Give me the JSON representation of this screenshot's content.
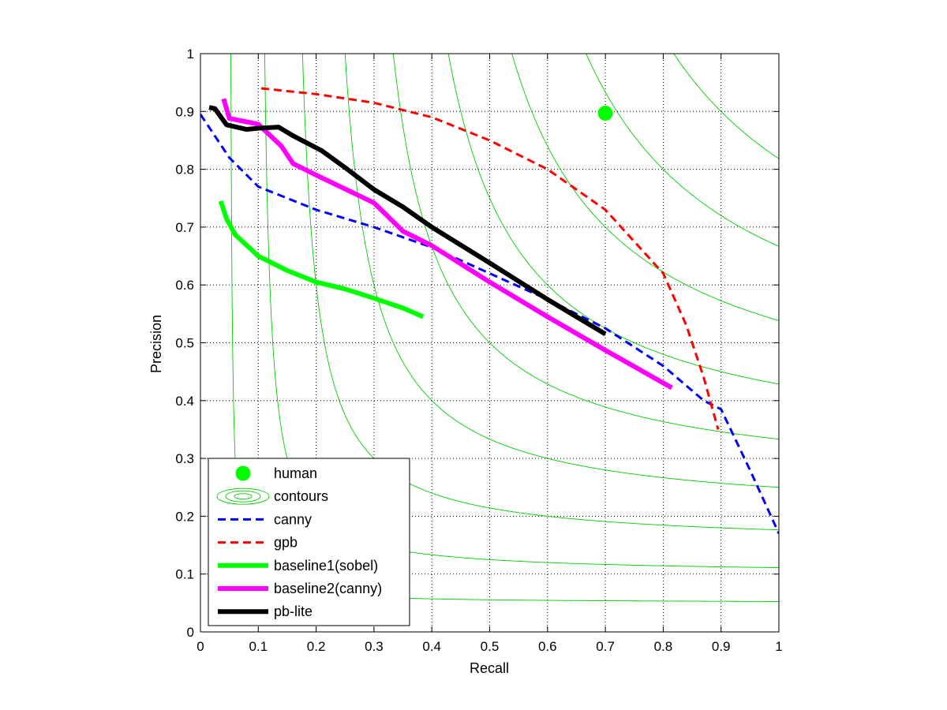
{
  "chart_data": {
    "type": "line",
    "title": "",
    "xlabel": "Recall",
    "ylabel": "Precision",
    "xlim": [
      0,
      1
    ],
    "ylim": [
      0,
      1
    ],
    "xticks": [
      "0",
      "0.1",
      "0.2",
      "0.3",
      "0.4",
      "0.5",
      "0.6",
      "0.7",
      "0.8",
      "0.9",
      "1"
    ],
    "yticks": [
      "0",
      "0.1",
      "0.2",
      "0.3",
      "0.4",
      "0.5",
      "0.6",
      "0.7",
      "0.8",
      "0.9",
      "1"
    ],
    "grid": true,
    "legend_position": "bottom-left",
    "contour_levels": [
      0.1,
      0.2,
      0.3,
      0.4,
      0.5,
      0.6,
      0.7,
      0.8,
      0.9
    ],
    "series": [
      {
        "name": "human",
        "kind": "point",
        "color": "#00ff00",
        "points": [
          [
            0.7,
            0.897
          ]
        ]
      },
      {
        "name": "contours",
        "kind": "contours",
        "color": "#00cc00"
      },
      {
        "name": "canny",
        "kind": "dashed",
        "color": "#0000ff",
        "points": [
          [
            0.0,
            0.895
          ],
          [
            0.05,
            0.82
          ],
          [
            0.1,
            0.77
          ],
          [
            0.2,
            0.73
          ],
          [
            0.3,
            0.7
          ],
          [
            0.4,
            0.665
          ],
          [
            0.5,
            0.62
          ],
          [
            0.6,
            0.575
          ],
          [
            0.7,
            0.525
          ],
          [
            0.8,
            0.46
          ],
          [
            0.87,
            0.4
          ],
          [
            0.9,
            0.385
          ],
          [
            0.95,
            0.28
          ],
          [
            1.0,
            0.17
          ]
        ]
      },
      {
        "name": "gpb",
        "kind": "dashed",
        "color": "#ff0000",
        "points": [
          [
            0.105,
            0.94
          ],
          [
            0.2,
            0.93
          ],
          [
            0.3,
            0.915
          ],
          [
            0.4,
            0.89
          ],
          [
            0.5,
            0.85
          ],
          [
            0.6,
            0.8
          ],
          [
            0.7,
            0.73
          ],
          [
            0.8,
            0.62
          ],
          [
            0.84,
            0.53
          ],
          [
            0.87,
            0.44
          ],
          [
            0.895,
            0.35
          ]
        ]
      },
      {
        "name": "baseline1(sobel)",
        "kind": "solid",
        "color": "#00ff00",
        "points": [
          [
            0.035,
            0.745
          ],
          [
            0.045,
            0.715
          ],
          [
            0.06,
            0.687
          ],
          [
            0.1,
            0.65
          ],
          [
            0.15,
            0.625
          ],
          [
            0.2,
            0.605
          ],
          [
            0.25,
            0.593
          ],
          [
            0.3,
            0.577
          ],
          [
            0.35,
            0.56
          ],
          [
            0.385,
            0.545
          ]
        ]
      },
      {
        "name": "baseline2(canny)",
        "kind": "solid",
        "color": "#ff00ff",
        "points": [
          [
            0.04,
            0.922
          ],
          [
            0.05,
            0.888
          ],
          [
            0.1,
            0.878
          ],
          [
            0.14,
            0.84
          ],
          [
            0.16,
            0.81
          ],
          [
            0.2,
            0.79
          ],
          [
            0.3,
            0.742
          ],
          [
            0.35,
            0.693
          ],
          [
            0.4,
            0.668
          ],
          [
            0.5,
            0.605
          ],
          [
            0.6,
            0.545
          ],
          [
            0.7,
            0.487
          ],
          [
            0.815,
            0.422
          ]
        ]
      },
      {
        "name": "pb-lite",
        "kind": "solid",
        "color": "#000000",
        "points": [
          [
            0.015,
            0.907
          ],
          [
            0.025,
            0.905
          ],
          [
            0.045,
            0.877
          ],
          [
            0.08,
            0.869
          ],
          [
            0.1,
            0.871
          ],
          [
            0.135,
            0.873
          ],
          [
            0.16,
            0.858
          ],
          [
            0.21,
            0.832
          ],
          [
            0.25,
            0.803
          ],
          [
            0.3,
            0.765
          ],
          [
            0.35,
            0.735
          ],
          [
            0.4,
            0.7
          ],
          [
            0.5,
            0.638
          ],
          [
            0.6,
            0.575
          ],
          [
            0.65,
            0.545
          ],
          [
            0.7,
            0.515
          ]
        ]
      }
    ]
  }
}
